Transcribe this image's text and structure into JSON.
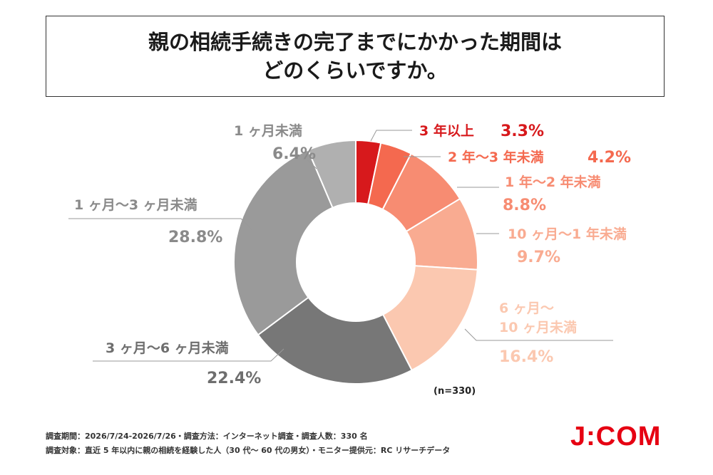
{
  "title": {
    "line1": "親の相続手続きの完了までにかかった期間は",
    "line2": "どのくらいですか。"
  },
  "chart_data": {
    "type": "pie",
    "subtype": "donut",
    "categories": [
      "3 年以上",
      "2 年〜3 年未満",
      "1 年〜2 年未満",
      "10 ヶ月〜1 年未満",
      "6 ヶ月〜10 ヶ月未満",
      "3 ヶ月〜6 ヶ月未満",
      "1 ヶ月〜3 ヶ月未満",
      "1 ヶ月未満"
    ],
    "values": [
      3.3,
      4.2,
      8.8,
      9.7,
      16.4,
      22.4,
      28.8,
      6.4
    ],
    "unit": "%",
    "colors": [
      "#d7191c",
      "#f4694f",
      "#f78c72",
      "#f9ab91",
      "#fbc8b0",
      "#777777",
      "#9a9a9a",
      "#b0b0b0"
    ],
    "label_colors": [
      "#d7191c",
      "#f4694f",
      "#f78c72",
      "#f9ab91",
      "#fbc8b0",
      "#6e6e6e",
      "#8a8a8a",
      "#8a8a8a"
    ],
    "labels": {
      "l0_name": "3 年以上",
      "l0_pct": "3.3%",
      "l1_name": "2 年〜3 年未満",
      "l1_pct": "4.2%",
      "l2_name": "1 年〜2 年未満",
      "l2_pct": "8.8%",
      "l3_name": "10 ヶ月〜1 年未満",
      "l3_pct": "9.7%",
      "l4_name1": "6 ヶ月〜",
      "l4_name2": "10 ヶ月未満",
      "l4_pct": "16.4%",
      "l5_name": "3 ヶ月〜6 ヶ月未満",
      "l5_pct": "22.4%",
      "l6_name": "1 ヶ月〜3 ヶ月未満",
      "l6_pct": "28.8%",
      "l7_name": "1 ヶ月未満",
      "l7_pct": "6.4%"
    },
    "sample_size": "(n=330)"
  },
  "footnotes": {
    "line1": "調査期間：2026/7/24-2026/7/26・調査方法：インターネット調査・調査人数：330 名",
    "line2": "調査対象：直近 5 年以内に親の相続を経験した人（30 代〜 60 代の男女）・モニター提供元：RC リサーチデータ"
  },
  "logo": "J:COM"
}
